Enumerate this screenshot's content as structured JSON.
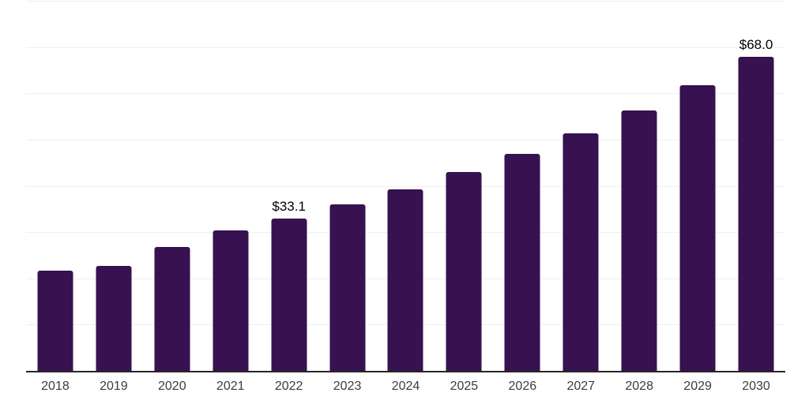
{
  "page": {
    "background_color": "#ffffff"
  },
  "chart_data": {
    "type": "bar",
    "title": "",
    "xlabel": "",
    "ylabel": "",
    "categories": [
      "2018",
      "2019",
      "2020",
      "2021",
      "2022",
      "2023",
      "2024",
      "2025",
      "2026",
      "2027",
      "2028",
      "2029",
      "2030"
    ],
    "values": [
      21.9,
      22.9,
      26.9,
      30.6,
      33.1,
      36.2,
      39.4,
      43.1,
      47.1,
      51.5,
      56.5,
      61.9,
      68.0
    ],
    "data_labels": {
      "2022": "$33.1",
      "2030": "$68.0"
    },
    "ylim": [
      0,
      80
    ],
    "gridline_step": 10,
    "grid": true,
    "legend": false,
    "y_axis_labels_visible": false,
    "bar_color": "#371150",
    "axis_line_color": "#262626",
    "gridline_color": "#efefef",
    "tick_label_color": "#3c3c3c",
    "data_label_color": "#000000"
  }
}
